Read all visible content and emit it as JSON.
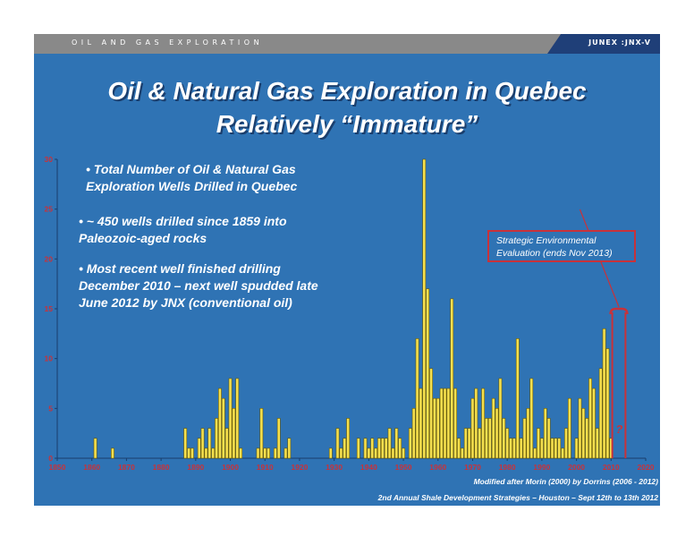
{
  "header": {
    "section_label": "OIL AND GAS EXPLORATION",
    "brand": "JUNEX :JNX-V"
  },
  "slide": {
    "title_line1": "Oil & Natural Gas Exploration in Quebec",
    "title_line2": "Relatively “Immature”",
    "bullets": [
      "• Total Number of Oil & Natural Gas Exploration Wells Drilled in Quebec",
      "• ~ 450 wells drilled since 1859 into Paleozoic-aged rocks",
      "• Most recent well finished drilling December 2010 – next well spudded late June 2012 by JNX (conventional oil)"
    ],
    "callout": "Strategic Environmental Evaluation (ends Nov 2013)",
    "question_mark": "?",
    "credit": "Modified after Morin (2000)  by Dorrins (2006 - 2012)",
    "footer": "2nd Annual Shale Development Strategies – Houston – Sept 12th to 13th 2012"
  },
  "colors": {
    "background": "#2f73b4",
    "bar_fill": "#f5e04f",
    "bar_stroke": "#6b5a00",
    "axis_labels": "#c8323a",
    "callout_border": "#c8323a",
    "header_bar": "#898989",
    "brand_bar": "#1f3f78"
  },
  "chart_data": {
    "type": "bar",
    "title": "",
    "xlabel": "",
    "ylabel": "",
    "xlim": [
      1850,
      2020
    ],
    "ylim": [
      0,
      30
    ],
    "x_ticks": [
      "1850",
      "1860",
      "1870",
      "1880",
      "1890",
      "1900",
      "1910",
      "1920",
      "1930",
      "1940",
      "1950",
      "1960",
      "1970",
      "1980",
      "1990",
      "2000",
      "2010",
      "2020"
    ],
    "y_ticks": [
      "0",
      "5",
      "10",
      "15",
      "20",
      "25",
      "30"
    ],
    "grid": false,
    "series": [
      {
        "years": [
          1861,
          1866,
          1887,
          1888,
          1889,
          1891,
          1892,
          1893,
          1894,
          1895,
          1896,
          1897,
          1898,
          1899,
          1900,
          1901,
          1902,
          1903,
          1908,
          1909,
          1910,
          1911,
          1913,
          1914,
          1916,
          1917,
          1929,
          1931,
          1932,
          1933,
          1934,
          1937,
          1939,
          1940,
          1941,
          1942,
          1943,
          1944,
          1945,
          1946,
          1947,
          1948,
          1949,
          1950,
          1952,
          1953,
          1954,
          1955,
          1956,
          1957,
          1958,
          1959,
          1960,
          1961,
          1962,
          1963,
          1964,
          1965,
          1966,
          1967,
          1968,
          1969,
          1970,
          1971,
          1972,
          1973,
          1974,
          1975,
          1976,
          1977,
          1978,
          1979,
          1980,
          1981,
          1982,
          1983,
          1984,
          1985,
          1986,
          1987,
          1988,
          1989,
          1990,
          1991,
          1992,
          1993,
          1994,
          1995,
          1996,
          1997,
          1998,
          2000,
          2001,
          2002,
          2003,
          2004,
          2005,
          2006,
          2007,
          2008,
          2009,
          2010
        ],
        "values": [
          2,
          1,
          3,
          1,
          1,
          2,
          3,
          1,
          3,
          1,
          4,
          7,
          6,
          3,
          8,
          5,
          8,
          1,
          1,
          5,
          1,
          1,
          1,
          4,
          1,
          2,
          1,
          3,
          1,
          2,
          4,
          2,
          2,
          1,
          2,
          1,
          2,
          2,
          2,
          3,
          1,
          3,
          2,
          1,
          3,
          5,
          12,
          7,
          30,
          17,
          9,
          6,
          6,
          7,
          7,
          7,
          16,
          7,
          2,
          1,
          3,
          3,
          6,
          7,
          3,
          7,
          4,
          4,
          6,
          5,
          8,
          4,
          3,
          2,
          2,
          12,
          2,
          4,
          5,
          8,
          1,
          3,
          2,
          5,
          4,
          2,
          2,
          2,
          1,
          3,
          6,
          2,
          6,
          5,
          4,
          8,
          7,
          3,
          9,
          13,
          11,
          2
        ]
      }
    ]
  }
}
